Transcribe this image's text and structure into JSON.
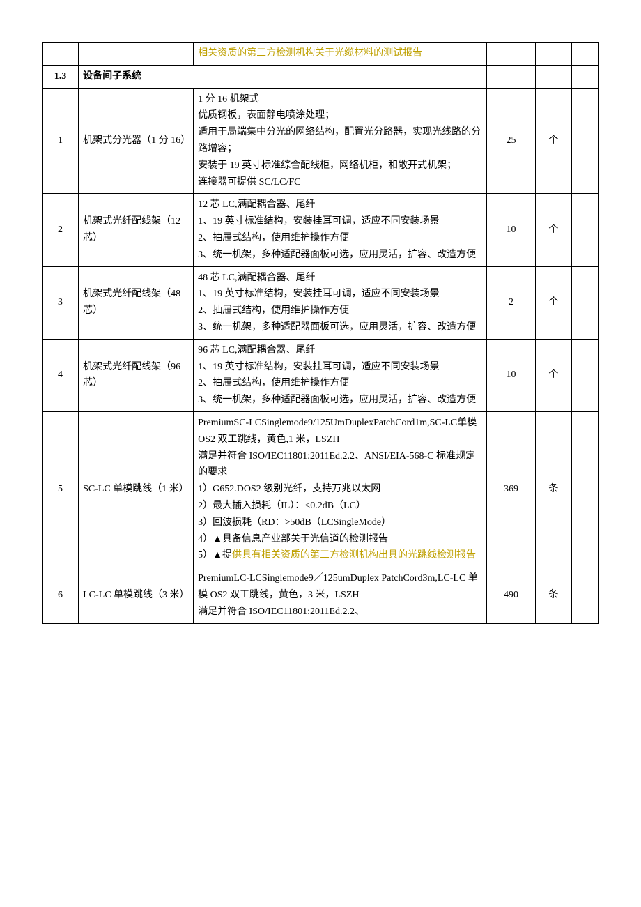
{
  "colors": {
    "text": "#000000",
    "highlight": "#bfa000",
    "border": "#000000",
    "background": "#ffffff"
  },
  "columns": {
    "num_width": 48,
    "name_width": 152,
    "spec_width": 388,
    "qty_width": 64,
    "unit_width": 48,
    "last_width": 36
  },
  "rows": [
    {
      "type": "partial_top",
      "spec_lines": [
        {
          "text": "相关资质的第三方检测机构关于光缆材料的测试报告",
          "highlight": true
        }
      ]
    },
    {
      "type": "section",
      "num": "1.3",
      "title": "设备间子系统"
    },
    {
      "type": "item",
      "num": "1",
      "name": "机架式分光器（1 分 16）",
      "spec_lines": [
        {
          "text": "1 分 16 机架式"
        },
        {
          "text": "优质钢板，表面静电喷涂处理；"
        },
        {
          "text": "适用于局端集中分光的网络结构，配置光分路器，实现光线路的分路增容；"
        },
        {
          "text": "安装于 19 英寸标准综合配线柜，网络机柜，和敞开式机架；"
        },
        {
          "text": "连接器可提供 SC/LC/FC",
          "truncate": true
        }
      ],
      "qty": "25",
      "unit": "个",
      "truncated": true
    },
    {
      "type": "item",
      "num": "2",
      "name": "机架式光纤配线架（12 芯）",
      "spec_lines": [
        {
          "text": "12 芯 LC,满配耦合器、尾纤"
        },
        {
          "text": "1、19 英寸标准结构，安装挂耳可调，适应不同安装场景"
        },
        {
          "text": "2、抽屉式结构，使用维护操作方便"
        },
        {
          "text": "3、统一机架，多种适配器面板可选，应用灵活，扩容、改造方便",
          "truncate": true
        }
      ],
      "qty": "10",
      "unit": "个",
      "truncated": true
    },
    {
      "type": "item",
      "num": "3",
      "name": "机架式光纤配线架（48 芯）",
      "spec_lines": [
        {
          "text": "48 芯 LC,满配耦合器、尾纤"
        },
        {
          "text": "1、19 英寸标准结构，安装挂耳可调，适应不同安装场景"
        },
        {
          "text": "2、抽屉式结构，使用维护操作方便"
        },
        {
          "text": "3、统一机架，多种适配器面板可选，应用灵活，扩容、改造方便",
          "truncate": true
        }
      ],
      "qty": "2",
      "unit": "个",
      "truncated": true
    },
    {
      "type": "item",
      "num": "4",
      "name": "机架式光纤配线架（96 芯）",
      "spec_lines": [
        {
          "text": "96 芯 LC,满配耦合器、尾纤"
        },
        {
          "text": "1、19 英寸标准结构，安装挂耳可调，适应不同安装场景"
        },
        {
          "text": "2、抽屉式结构，使用维护操作方便"
        },
        {
          "text": "3、统一机架，多种适配器面板可选，应用灵活，扩容、改造方便",
          "truncate": true
        }
      ],
      "qty": "10",
      "unit": "个",
      "truncated": true
    },
    {
      "type": "item",
      "num": "5",
      "name": "SC-LC 单模跳线（1 米）",
      "spec_lines": [
        {
          "text": "PremiumSC-LCSinglemode9/125UmDuplexPatchCord1m,SC-LC单模 OS2 双工跳线，黄色,1 米，LSZH"
        },
        {
          "text": "满足并符合 ISO/IEC11801:2011Ed.2.2、ANSI/EIA-568-C 标准规定的要求"
        },
        {
          "text": "1）G652.DOS2 级别光纤，支持万兆以太网"
        },
        {
          "text": "2）最大插入损耗（IL）：<0.2dB（LC）"
        },
        {
          "text": "3）回波损耗（RD：>50dB（LCSingleMode）"
        },
        {
          "text": "4）▲具备信息产业部关于光信道的检测报告"
        },
        {
          "text": "5）▲提",
          "append_highlight": "供具有相关资质的第三方检测机构出具的光跳线检测报告"
        }
      ],
      "qty": "369",
      "unit": "条",
      "truncated": true
    },
    {
      "type": "item",
      "num": "6",
      "name": "LC-LC 单模跳线（3 米）",
      "spec_lines": [
        {
          "text": "PremiumLC-LCSinglemode9／125umDuplex PatchCord3m,LC-LC 单模 OS2 双工跳线，黄色，3 米，LSZH"
        },
        {
          "text": "满足并符合 ISO/IEC11801:2011Ed.2.2、"
        }
      ],
      "qty": "490",
      "unit": "条",
      "truncated": false
    }
  ]
}
